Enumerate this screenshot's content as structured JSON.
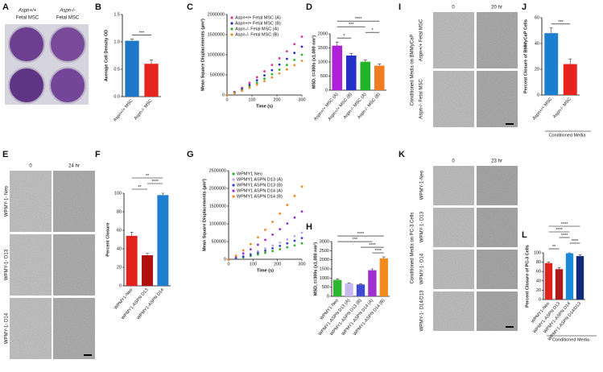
{
  "photo_A": {
    "label": "A",
    "columns": [
      {
        "genotype": "Aspn+/+",
        "cell": "Fetal MSC"
      },
      {
        "genotype": "Aspn-/-",
        "cell": "Fetal MSC"
      }
    ]
  },
  "photo_E": {
    "label": "E",
    "times": [
      "0",
      "24 hr"
    ],
    "rows": [
      "WPMY-1- Neo",
      "WPMY-1- D13",
      "WPMY-1- D14"
    ]
  },
  "photo_I": {
    "label": "I",
    "times": [
      "0",
      "20 hr"
    ],
    "side": "Conditioned Media on BMMyCaP",
    "rows": [
      "Aspn+/+ Fetal MSC",
      "Aspn-/- Fetal MSC"
    ]
  },
  "photo_K": {
    "label": "K",
    "times": [
      "0",
      "23 hr"
    ],
    "side": "Conditioned Media on PC-3 Cells",
    "rows": [
      "WPMY-1-Neo",
      "WPMY-1- D13",
      "WPMY-1- D14",
      "WPMY-1- D14/D13"
    ]
  },
  "chart_data": [
    {
      "label": "B",
      "type": "bar",
      "ylabel": "Average Cell Density OD",
      "categories": [
        "Aspn+/+ MSC",
        "Aspn-/- MSC"
      ],
      "values": [
        1.02,
        0.6
      ],
      "errors": [
        0.03,
        0.07
      ],
      "colors": [
        "#1f77c8",
        "#e8241e"
      ],
      "ylim": [
        0,
        1.5
      ],
      "yticks": [
        {
          "value": 0,
          "label": "0.0"
        },
        {
          "value": 0.5,
          "label": "0.5"
        },
        {
          "value": 1,
          "label": "1.0"
        },
        {
          "value": 1.5,
          "label": "1.5"
        }
      ],
      "significance": [
        {
          "pair": [
            0,
            1
          ],
          "label": "***"
        }
      ]
    },
    {
      "label": "C",
      "type": "line",
      "ylabel": "Mean Square Displacements (µm²)",
      "xlabel": "Time (s)",
      "x": [
        0,
        30,
        60,
        90,
        120,
        150,
        180,
        210,
        240,
        270,
        300
      ],
      "xlim": [
        0,
        300
      ],
      "xticks": [
        0,
        100,
        200,
        300
      ],
      "ylim": [
        0,
        2000000
      ],
      "yticks": [
        0,
        500000,
        1000000,
        1500000,
        2000000
      ],
      "series": [
        {
          "name": "Aspn+/+ Fetal MSC (A)",
          "color": "#e0309a",
          "values": [
            0,
            72500,
            178000,
            303000,
            441000,
            589000,
            747000,
            912000,
            1085000,
            1264000,
            1450000
          ]
        },
        {
          "name": "Aspn+/+ Fetal MSC (B)",
          "color": "#1f2fd0",
          "values": [
            0,
            60000,
            148000,
            251000,
            365000,
            487000,
            618000,
            755000,
            898000,
            1046000,
            1200000
          ]
        },
        {
          "name": "Aspn-/- Fetal MSC (A)",
          "color": "#2ab52a",
          "values": [
            0,
            50000,
            123000,
            209000,
            304000,
            406000,
            515000,
            629000,
            748000,
            872000,
            1000000
          ]
        },
        {
          "name": "Aspn-/- Fetal MSC (B)",
          "color": "#f08a25",
          "values": [
            0,
            42500,
            105000,
            178000,
            258000,
            345000,
            438000,
            535000,
            636000,
            741000,
            850000
          ]
        }
      ]
    },
    {
      "label": "D",
      "type": "bar",
      "ylabel": "MSD, t=300s (x1,000 nm²)",
      "categories": [
        "Aspn+/+ MSC (A)",
        "Aspn+/+ MSC (B)",
        "Aspn-/- MSC (A)",
        "Aspn-/- MSC (B)"
      ],
      "values": [
        1580,
        1230,
        1010,
        870
      ],
      "errors": [
        130,
        80,
        60,
        60
      ],
      "colors": [
        "#b01fd8",
        "#2230c8",
        "#22b428",
        "#f07d22"
      ],
      "ylim": [
        0,
        2000
      ],
      "yticks": [
        0,
        500,
        1000,
        1500,
        2000
      ],
      "significance": [
        {
          "pair": [
            0,
            1
          ],
          "label": "*"
        },
        {
          "pair": [
            2,
            3
          ],
          "label": "*"
        },
        {
          "pair": [
            0,
            2
          ],
          "label": "***"
        },
        {
          "pair": [
            0,
            3
          ],
          "label": "****"
        }
      ]
    },
    {
      "label": "F",
      "type": "bar",
      "ylabel": "Percent Closure",
      "categories": [
        "WPMY1-Neo",
        "WPMY1-ASPN D13",
        "WPMY1-ASPN D14"
      ],
      "values": [
        54,
        33,
        98
      ],
      "errors": [
        4,
        2,
        2
      ],
      "colors": [
        "#e3231b",
        "#b01010",
        "#1e7fd0"
      ],
      "ylim": [
        0,
        100
      ],
      "yticks": [
        0,
        20,
        40,
        60,
        80,
        100
      ],
      "significance": [
        {
          "pair": [
            0,
            1
          ],
          "label": "**"
        },
        {
          "pair": [
            1,
            2
          ],
          "label": "****"
        },
        {
          "pair": [
            0,
            2
          ],
          "label": "**"
        }
      ]
    },
    {
      "label": "G",
      "type": "line",
      "ylabel": "Mean Square Displacements (µm²)",
      "xlabel": "Time (s)",
      "x": [
        0,
        30,
        60,
        90,
        120,
        150,
        180,
        210,
        240,
        270,
        300
      ],
      "xlim": [
        0,
        300
      ],
      "xticks": [
        0,
        100,
        200,
        300
      ],
      "ylim": [
        0,
        2500000
      ],
      "yticks": [
        0,
        500000,
        1000000,
        1500000,
        2000000,
        2500000
      ],
      "series": [
        {
          "name": "WPMY1 Neo",
          "color": "#2ab52a",
          "values": [
            0,
            22500,
            55000,
            94000,
            137000,
            183000,
            232000,
            283000,
            337000,
            392000,
            450000
          ]
        },
        {
          "name": "WPMY1 ASPN D13 (A)",
          "color": "#b8a8e8",
          "values": [
            0,
            37500,
            92000,
            157000,
            228000,
            305000,
            386000,
            472000,
            561000,
            654000,
            750000
          ]
        },
        {
          "name": "WPMY1 ASPN D13 (B)",
          "color": "#3a42d0",
          "values": [
            0,
            30000,
            74000,
            125000,
            182000,
            244000,
            309000,
            377000,
            449000,
            523000,
            600000
          ]
        },
        {
          "name": "WPMY1 ASPN D14 (A)",
          "color": "#9b30d0",
          "values": [
            0,
            67500,
            166000,
            282000,
            410000,
            548000,
            695000,
            849000,
            1010000,
            1177000,
            1350000
          ]
        },
        {
          "name": "WPMY1 ASPN D14 (B)",
          "color": "#f08a20",
          "values": [
            0,
            102500,
            252000,
            428000,
            623000,
            832000,
            1056000,
            1289000,
            1533000,
            1788000,
            2050000
          ]
        }
      ]
    },
    {
      "label": "H",
      "type": "bar",
      "ylabel": "MSD, t=300s (x1,000 nm²)",
      "categories": [
        "WPMY1-Neo",
        "WPMY1-ASPN D13 (A)",
        "WPMY1-ASPN D13 (B)",
        "WPMY1-ASPN D14 (A)",
        "WPMY1-ASPN D14 (B)"
      ],
      "values": [
        900,
        700,
        650,
        1430,
        2080
      ],
      "errors": [
        50,
        30,
        40,
        70,
        80
      ],
      "colors": [
        "#2fb52f",
        "#c8b8f0",
        "#3e48d0",
        "#a030d0",
        "#f08c20"
      ],
      "ylim": [
        0,
        3000
      ],
      "yticks": [
        0,
        500,
        1000,
        1500,
        2000,
        2500,
        3000
      ],
      "significance": [
        {
          "pair": [
            3,
            4
          ],
          "label": "****"
        },
        {
          "pair": [
            2,
            4
          ],
          "label": "****"
        },
        {
          "pair": [
            0,
            3
          ],
          "label": "***"
        },
        {
          "pair": [
            0,
            4
          ],
          "label": "****"
        }
      ]
    },
    {
      "label": "J",
      "type": "bar",
      "ylabel": "Percent Closure of BMMyCaP Cells",
      "xlabel": "Conditioned Media",
      "categories": [
        "Aspn+/+ MSC",
        "Aspn-/- MSC"
      ],
      "values": [
        48,
        24
      ],
      "errors": [
        4,
        4
      ],
      "colors": [
        "#1a7fd0",
        "#e8231e"
      ],
      "ylim": [
        0,
        60
      ],
      "yticks": [
        0,
        20,
        40,
        60
      ],
      "significance": [
        {
          "pair": [
            0,
            1
          ],
          "label": "***"
        }
      ]
    },
    {
      "label": "L",
      "type": "bar",
      "ylabel": "Percent Closure of PC-3 Cells",
      "xlabel": "Conditioned Media",
      "categories": [
        "WPMY1-Neo",
        "WPMY1-ASPN D13",
        "WPMY1-ASPN D14",
        "WPMY1-ASPN D14/D13"
      ],
      "values": [
        78,
        65,
        99,
        93
      ],
      "errors": [
        2,
        3,
        1,
        3
      ],
      "colors": [
        "#e0231d",
        "#b01818",
        "#1b8ad8",
        "#0e2a78"
      ],
      "ylim": [
        0,
        100
      ],
      "yticks": [
        0,
        20,
        40,
        60,
        80,
        100
      ],
      "significance": [
        {
          "pair": [
            0,
            1
          ],
          "label": "**"
        },
        {
          "pair": [
            2,
            3
          ],
          "label": "****"
        },
        {
          "pair": [
            1,
            2
          ],
          "label": "****"
        },
        {
          "pair": [
            0,
            2
          ],
          "label": "****"
        },
        {
          "pair": [
            0,
            3
          ],
          "label": "****"
        }
      ]
    }
  ]
}
